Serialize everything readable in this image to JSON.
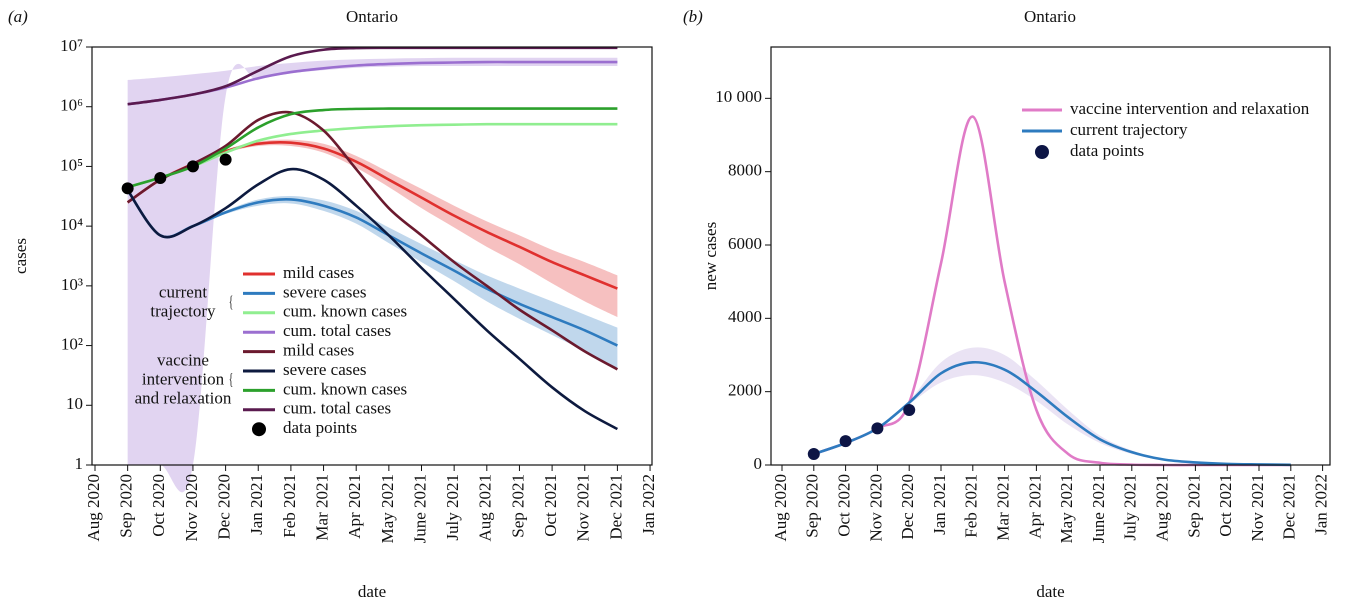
{
  "chart_data": [
    {
      "type": "line",
      "panel_label": "(a)",
      "title": "Ontario",
      "x_label": "date",
      "y_label": "cases",
      "log_scale": true,
      "x": [
        "Aug 2020",
        "Sep 2020",
        "Oct 2020",
        "Nov 2020",
        "Dec 2020",
        "Jan 2021",
        "Feb 2021",
        "Mar 2021",
        "Apr 2021",
        "May 2021",
        "June 2021",
        "July 2021",
        "Aug 2021",
        "Sep 2021",
        "Oct 2021",
        "Nov 2021",
        "Dec 2021",
        "Jan 2022"
      ],
      "ylim": [
        1,
        10000000
      ],
      "yticks": [
        1,
        10,
        {
          "value": 100,
          "label": "10²"
        },
        {
          "value": 1000,
          "label": "10³"
        },
        {
          "value": 10000,
          "label": "10⁴"
        },
        {
          "value": 100000,
          "label": "10⁵"
        },
        {
          "value": 1000000,
          "label": "10⁶"
        },
        {
          "value": 10000000,
          "label": "10⁷"
        }
      ],
      "legend_groups": [
        [
          "current",
          "trajectory"
        ],
        [
          "vaccine",
          "intervention",
          "and relaxation"
        ]
      ],
      "series": [
        {
          "name": "mild cases",
          "group": 0,
          "color": "#e0302e",
          "values": [
            null,
            25000,
            60000,
            110000,
            180000,
            240000,
            250000,
            200000,
            120000,
            60000,
            30000,
            15000,
            8000,
            4500,
            2500,
            1500,
            900,
            null
          ],
          "lower": [
            null,
            25000,
            60000,
            110000,
            170000,
            220000,
            220000,
            170000,
            95000,
            45000,
            20000,
            9500,
            4500,
            2300,
            1100,
            550,
            300,
            null
          ],
          "upper": [
            null,
            25000,
            60000,
            110000,
            190000,
            260000,
            280000,
            240000,
            150000,
            80000,
            42000,
            22000,
            12000,
            7000,
            4000,
            2500,
            1500,
            null
          ]
        },
        {
          "name": "severe cases",
          "group": 0,
          "color": "#2e7bbf",
          "values": [
            null,
            40000,
            7000,
            10000,
            17000,
            25000,
            28000,
            22000,
            14000,
            7000,
            3500,
            1800,
            900,
            500,
            300,
            180,
            100,
            null
          ],
          "lower": [
            null,
            40000,
            7000,
            10000,
            16000,
            22000,
            24000,
            18000,
            11000,
            5200,
            2500,
            1200,
            550,
            280,
            150,
            80,
            40,
            null
          ],
          "upper": [
            null,
            40000,
            7000,
            10000,
            18000,
            28000,
            32000,
            27000,
            18000,
            9500,
            5000,
            2700,
            1500,
            900,
            550,
            330,
            200,
            null
          ]
        },
        {
          "name": "cum. known cases",
          "group": 0,
          "color": "#90ee90",
          "values": [
            null,
            45000,
            65000,
            100000,
            170000,
            270000,
            350000,
            400000,
            440000,
            470000,
            490000,
            500000,
            510000,
            510000,
            510000,
            510000,
            510000,
            null
          ]
        },
        {
          "name": "cum. total cases",
          "group": 0,
          "color": "#9b6fd0",
          "values": [
            null,
            1100000,
            1300000,
            1600000,
            2100000,
            3000000,
            3800000,
            4400000,
            4900000,
            5200000,
            5400000,
            5500000,
            5600000,
            5600000,
            5600000,
            5600000,
            5600000,
            null
          ],
          "lower": [
            null,
            1,
            1,
            1,
            1500000,
            2800000,
            3600000,
            4100000,
            4500000,
            4700000,
            4800000,
            4800000,
            4800000,
            4800000,
            4800000,
            4800000,
            4800000,
            null
          ],
          "upper": [
            null,
            2800000,
            3100000,
            3500000,
            4000000,
            4800000,
            5400000,
            5900000,
            6200000,
            6400000,
            6500000,
            6600000,
            6600000,
            6600000,
            6600000,
            6600000,
            6600000,
            null
          ]
        },
        {
          "name": "mild cases",
          "group": 1,
          "color": "#6b1a2e",
          "values": [
            null,
            25000,
            60000,
            110000,
            220000,
            600000,
            800000,
            400000,
            90000,
            20000,
            7000,
            2500,
            1000,
            400,
            180,
            80,
            40,
            null
          ]
        },
        {
          "name": "severe cases",
          "group": 1,
          "color": "#0d1a3f",
          "values": [
            null,
            40000,
            7000,
            10000,
            20000,
            50000,
            90000,
            60000,
            22000,
            7000,
            2000,
            600,
            180,
            60,
            20,
            8,
            4,
            null
          ]
        },
        {
          "name": "cum. known cases",
          "group": 1,
          "color": "#2ca02c",
          "values": [
            null,
            45000,
            65000,
            100000,
            200000,
            450000,
            750000,
            880000,
            920000,
            930000,
            930000,
            930000,
            930000,
            930000,
            930000,
            930000,
            930000,
            null
          ]
        },
        {
          "name": "cum. total cases",
          "group": 1,
          "color": "#5a1a4f",
          "values": [
            null,
            1100000,
            1300000,
            1600000,
            2200000,
            4000000,
            7000000,
            9000000,
            9600000,
            9700000,
            9700000,
            9700000,
            9700000,
            9700000,
            9700000,
            9700000,
            9700000,
            null
          ]
        },
        {
          "name": "data points",
          "mode": "markers",
          "color": "#000000",
          "values": [
            null,
            43000,
            64000,
            100000,
            130000,
            null,
            null,
            null,
            null,
            null,
            null,
            null,
            null,
            null,
            null,
            null,
            null,
            null
          ]
        }
      ]
    },
    {
      "type": "line",
      "panel_label": "(b)",
      "title": "Ontario",
      "x_label": "date",
      "y_label": "new cases",
      "log_scale": false,
      "x": [
        "Aug 2020",
        "Sep 2020",
        "Oct 2020",
        "Nov 2020",
        "Dec 2020",
        "Jan 2021",
        "Feb 2021",
        "Mar 2021",
        "Apr 2021",
        "May 2021",
        "June 2021",
        "July 2021",
        "Aug 2021",
        "Sep 2021",
        "Oct 2021",
        "Nov 2021",
        "Dec 2021",
        "Jan 2022"
      ],
      "ylim": [
        0,
        11400
      ],
      "yticks": [
        0,
        2000,
        4000,
        6000,
        8000,
        {
          "value": 10000,
          "label": "10 000"
        }
      ],
      "series": [
        {
          "name": "vaccine intervention and relaxation",
          "color": "#e07bc7",
          "values": [
            null,
            300,
            600,
            1000,
            1700,
            5500,
            9500,
            5000,
            1500,
            300,
            60,
            10,
            0,
            0,
            0,
            0,
            0,
            null
          ]
        },
        {
          "name": "current trajectory",
          "color": "#2e7bbf",
          "band_color": "#b9a2dc",
          "values": [
            null,
            300,
            600,
            1000,
            1700,
            2500,
            2800,
            2600,
            2000,
            1300,
            700,
            350,
            150,
            70,
            30,
            15,
            5,
            null
          ],
          "lower": [
            null,
            300,
            600,
            1000,
            1650,
            2250,
            2450,
            2250,
            1750,
            1100,
            600,
            300,
            130,
            60,
            25,
            12,
            4,
            null
          ],
          "upper": [
            null,
            300,
            600,
            1000,
            1750,
            2800,
            3200,
            3000,
            2300,
            1500,
            800,
            400,
            170,
            80,
            35,
            18,
            6,
            null
          ]
        },
        {
          "name": "data points",
          "mode": "markers",
          "color": "#0d1545",
          "values": [
            null,
            300,
            650,
            1000,
            1500,
            null,
            null,
            null,
            null,
            null,
            null,
            null,
            null,
            null,
            null,
            null,
            null,
            null
          ]
        }
      ]
    }
  ]
}
